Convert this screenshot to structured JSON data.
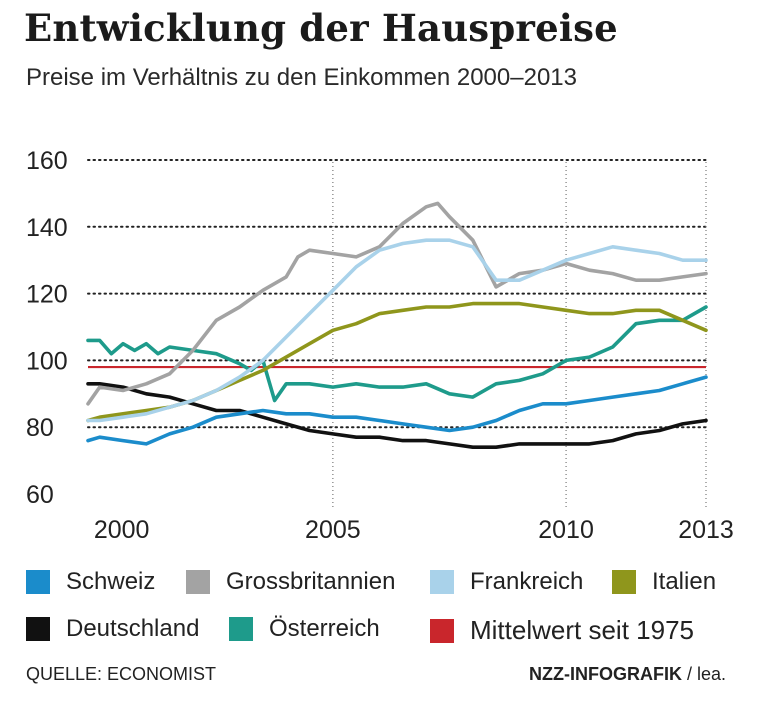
{
  "header": {
    "title": "Entwicklung der Hauspreise",
    "subtitle": "Preise im Verhältnis zu den Einkommen 2000–2013"
  },
  "footer": {
    "source": "QUELLE: ECONOMIST",
    "credit_brand": "NZZ-INFOGRAFIK",
    "credit_author": "/ lea."
  },
  "chart_data": {
    "type": "line",
    "title": "Entwicklung der Hauspreise",
    "subtitle": "Preise im Verhältnis zu den Einkommen 2000–2013",
    "xlabel": "",
    "ylabel": "",
    "xlim": [
      1999.75,
      2013.0
    ],
    "ylim": [
      60,
      160
    ],
    "x_ticks": [
      2000,
      2005,
      2010,
      2013
    ],
    "x_tick_labels": [
      "2000",
      "2005",
      "2010",
      "2013"
    ],
    "y_ticks": [
      60,
      80,
      100,
      120,
      140,
      160
    ],
    "y_tick_labels": [
      "60",
      "80",
      "100",
      "120",
      "140",
      "160"
    ],
    "grid": "horizontal dotted",
    "reference_line": {
      "name": "Mittelwert seit 1975",
      "value": 98,
      "color": "#c9262c"
    },
    "series": [
      {
        "name": "Schweiz",
        "color": "#1b8ccb",
        "x": [
          1999.75,
          2000.0,
          2000.5,
          2001.0,
          2001.5,
          2002.0,
          2002.5,
          2003.0,
          2003.5,
          2004.0,
          2004.5,
          2005.0,
          2005.5,
          2006.0,
          2006.5,
          2007.0,
          2007.5,
          2008.0,
          2008.5,
          2009.0,
          2009.5,
          2010.0,
          2010.5,
          2011.0,
          2011.5,
          2012.0,
          2012.5,
          2013.0
        ],
        "values": [
          76,
          77,
          76,
          75,
          78,
          80,
          83,
          84,
          85,
          84,
          84,
          83,
          83,
          82,
          81,
          80,
          79,
          80,
          82,
          85,
          87,
          87,
          88,
          89,
          90,
          91,
          93,
          95
        ]
      },
      {
        "name": "Grossbritannien",
        "color": "#a3a3a3",
        "x": [
          1999.75,
          2000.0,
          2000.5,
          2001.0,
          2001.5,
          2002.0,
          2002.5,
          2003.0,
          2003.5,
          2004.0,
          2004.25,
          2004.5,
          2005.0,
          2005.5,
          2006.0,
          2006.5,
          2007.0,
          2007.25,
          2007.5,
          2008.0,
          2008.5,
          2009.0,
          2009.5,
          2010.0,
          2010.5,
          2011.0,
          2011.5,
          2012.0,
          2012.5,
          2013.0
        ],
        "values": [
          87,
          92,
          91,
          93,
          96,
          103,
          112,
          116,
          121,
          125,
          131,
          133,
          132,
          131,
          134,
          141,
          146,
          147,
          143,
          136,
          122,
          126,
          127,
          129,
          127,
          126,
          124,
          124,
          125,
          126
        ]
      },
      {
        "name": "Frankreich",
        "color": "#a9d2ea",
        "x": [
          1999.75,
          2000.0,
          2000.5,
          2001.0,
          2001.5,
          2002.0,
          2002.5,
          2003.0,
          2003.5,
          2004.0,
          2004.5,
          2005.0,
          2005.5,
          2006.0,
          2006.5,
          2007.0,
          2007.5,
          2008.0,
          2008.5,
          2009.0,
          2009.5,
          2010.0,
          2010.5,
          2011.0,
          2011.5,
          2012.0,
          2012.5,
          2013.0
        ],
        "values": [
          82,
          82,
          83,
          84,
          86,
          88,
          91,
          95,
          100,
          107,
          114,
          121,
          128,
          133,
          135,
          136,
          136,
          134,
          124,
          124,
          127,
          130,
          132,
          134,
          133,
          132,
          130,
          130
        ]
      },
      {
        "name": "Italien",
        "color": "#8f961c",
        "x": [
          1999.75,
          2000.0,
          2000.5,
          2001.0,
          2001.5,
          2002.0,
          2002.5,
          2003.0,
          2003.5,
          2004.0,
          2004.5,
          2005.0,
          2005.5,
          2006.0,
          2006.5,
          2007.0,
          2007.5,
          2008.0,
          2008.5,
          2009.0,
          2009.5,
          2010.0,
          2010.5,
          2011.0,
          2011.5,
          2012.0,
          2012.5,
          2013.0
        ],
        "values": [
          82,
          83,
          84,
          85,
          86,
          88,
          91,
          94,
          97,
          101,
          105,
          109,
          111,
          114,
          115,
          116,
          116,
          117,
          117,
          117,
          116,
          115,
          114,
          114,
          115,
          115,
          112,
          109
        ]
      },
      {
        "name": "Deutschland",
        "color": "#111111",
        "x": [
          1999.75,
          2000.0,
          2000.5,
          2001.0,
          2001.5,
          2002.0,
          2002.5,
          2003.0,
          2003.5,
          2004.0,
          2004.5,
          2005.0,
          2005.5,
          2006.0,
          2006.5,
          2007.0,
          2007.5,
          2008.0,
          2008.5,
          2009.0,
          2009.5,
          2010.0,
          2010.5,
          2011.0,
          2011.5,
          2012.0,
          2012.5,
          2013.0
        ],
        "values": [
          93,
          93,
          92,
          90,
          89,
          87,
          85,
          85,
          83,
          81,
          79,
          78,
          77,
          77,
          76,
          76,
          75,
          74,
          74,
          75,
          75,
          75,
          75,
          76,
          78,
          79,
          81,
          82
        ]
      },
      {
        "name": "Österreich",
        "color": "#1e9b8b",
        "x": [
          1999.75,
          2000.0,
          2000.25,
          2000.5,
          2000.75,
          2001.0,
          2001.25,
          2001.5,
          2002.0,
          2002.5,
          2003.0,
          2003.25,
          2003.5,
          2003.75,
          2004.0,
          2004.5,
          2005.0,
          2005.5,
          2006.0,
          2006.5,
          2007.0,
          2007.5,
          2008.0,
          2008.5,
          2009.0,
          2009.5,
          2010.0,
          2010.5,
          2011.0,
          2011.5,
          2012.0,
          2012.5,
          2013.0
        ],
        "values": [
          106,
          106,
          102,
          105,
          103,
          105,
          102,
          104,
          103,
          102,
          99,
          97,
          100,
          88,
          93,
          93,
          92,
          93,
          92,
          92,
          93,
          90,
          89,
          93,
          94,
          96,
          100,
          101,
          104,
          111,
          112,
          112,
          116
        ]
      }
    ]
  },
  "legend": {
    "items": [
      {
        "label": "Schweiz",
        "color": "#1b8ccb"
      },
      {
        "label": "Grossbritannien",
        "color": "#a3a3a3"
      },
      {
        "label": "Frankreich",
        "color": "#a9d2ea"
      },
      {
        "label": "Italien",
        "color": "#8f961c"
      },
      {
        "label": "Deutschland",
        "color": "#111111"
      },
      {
        "label": "Österreich",
        "color": "#1e9b8b"
      },
      {
        "label": "Mittelwert seit 1975",
        "color": "#c9262c"
      }
    ]
  }
}
